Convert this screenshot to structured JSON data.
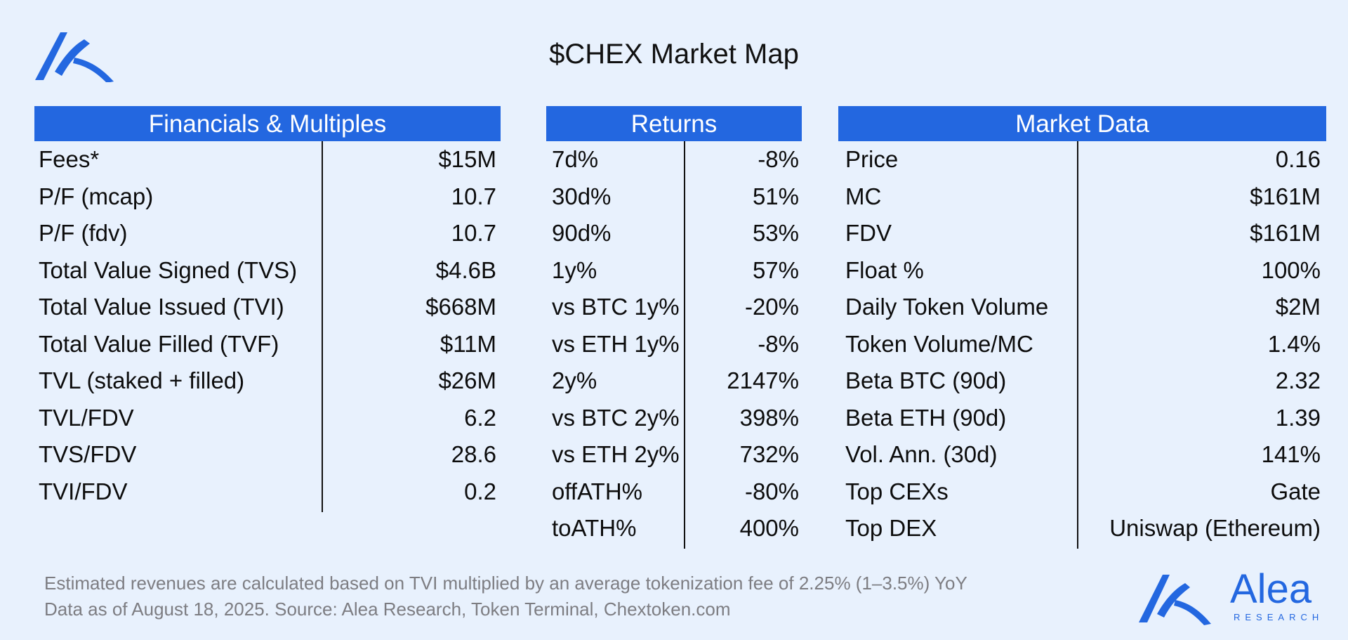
{
  "title": "$CHEX Market Map",
  "colors": {
    "background": "#e8f1fd",
    "accent": "#2367e0",
    "text": "#111111",
    "footnote": "#7d7d82"
  },
  "icons": {
    "top_logo": "alea-logo-icon",
    "bottom_logo": "alea-research-logo-icon"
  },
  "chart_data": {
    "type": "table",
    "tables": [
      {
        "header": "Financials & Multiples",
        "rows": [
          {
            "label": "Fees*",
            "value": "$15M"
          },
          {
            "label": "P/F (mcap)",
            "value": "10.7"
          },
          {
            "label": "P/F (fdv)",
            "value": "10.7"
          },
          {
            "label": "Total Value Signed (TVS)",
            "value": "$4.6B"
          },
          {
            "label": "Total Value Issued (TVI)",
            "value": "$668M"
          },
          {
            "label": "Total Value Filled (TVF)",
            "value": "$11M"
          },
          {
            "label": "TVL (staked + filled)",
            "value": "$26M"
          },
          {
            "label": "TVL/FDV",
            "value": "6.2"
          },
          {
            "label": "TVS/FDV",
            "value": "28.6"
          },
          {
            "label": "TVI/FDV",
            "value": "0.2"
          }
        ]
      },
      {
        "header": "Returns",
        "rows": [
          {
            "label": "7d%",
            "value": "-8%"
          },
          {
            "label": "30d%",
            "value": "51%"
          },
          {
            "label": "90d%",
            "value": "53%"
          },
          {
            "label": "1y%",
            "value": "57%"
          },
          {
            "label": "vs BTC 1y%",
            "value": "-20%"
          },
          {
            "label": "vs ETH 1y%",
            "value": "-8%"
          },
          {
            "label": "2y%",
            "value": "2147%"
          },
          {
            "label": "vs BTC 2y%",
            "value": "398%"
          },
          {
            "label": "vs ETH 2y%",
            "value": "732%"
          },
          {
            "label": "offATH%",
            "value": "-80%"
          },
          {
            "label": "toATH%",
            "value": "400%"
          }
        ]
      },
      {
        "header": "Market Data",
        "rows": [
          {
            "label": "Price",
            "value": "0.16"
          },
          {
            "label": "MC",
            "value": "$161M"
          },
          {
            "label": "FDV",
            "value": "$161M"
          },
          {
            "label": "Float %",
            "value": "100%"
          },
          {
            "label": "Daily Token Volume",
            "value": "$2M"
          },
          {
            "label": "Token Volume/MC",
            "value": "1.4%"
          },
          {
            "label": "Beta BTC (90d)",
            "value": "2.32"
          },
          {
            "label": "Beta ETH (90d)",
            "value": "1.39"
          },
          {
            "label": "Vol. Ann. (30d)",
            "value": "141%"
          },
          {
            "label": "Top CEXs",
            "value": "Gate"
          },
          {
            "label": "Top DEX",
            "value": "Uniswap (Ethereum)"
          }
        ]
      }
    ]
  },
  "footnotes": [
    "Estimated revenues are calculated based on TVI multiplied by an average tokenization fee of 2.25% (1–3.5%) YoY",
    "Data as of August 18, 2025. Source: Alea Research, Token Terminal, Chextoken.com"
  ],
  "brand": {
    "name": "Alea",
    "tagline": "RESEARCH"
  }
}
